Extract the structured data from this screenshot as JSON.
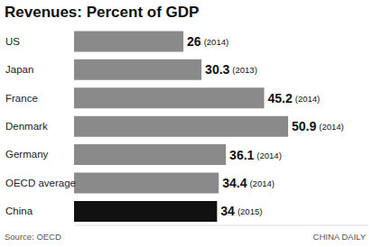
{
  "chart_data": {
    "type": "bar",
    "title": "Revenues: Percent of GDP",
    "orientation": "horizontal",
    "categories": [
      "US",
      "Japan",
      "France",
      "Denmark",
      "Germany",
      "OECD average",
      "China"
    ],
    "values": [
      26,
      30.3,
      45.2,
      50.9,
      36.1,
      34.4,
      34
    ],
    "years": [
      "(2014)",
      "(2013)",
      "(2014)",
      "(2014)",
      "(2014)",
      "(2014)",
      "(2015)"
    ],
    "colors": [
      "#8a8a8a",
      "#8a8a8a",
      "#8a8a8a",
      "#8a8a8a",
      "#8a8a8a",
      "#8a8a8a",
      "#111111"
    ],
    "xlim": [
      0,
      70
    ],
    "data_labels": true,
    "tick_labels": "y",
    "grid": false,
    "source": "Source: OECD",
    "credit": "CHINA DAILY"
  }
}
